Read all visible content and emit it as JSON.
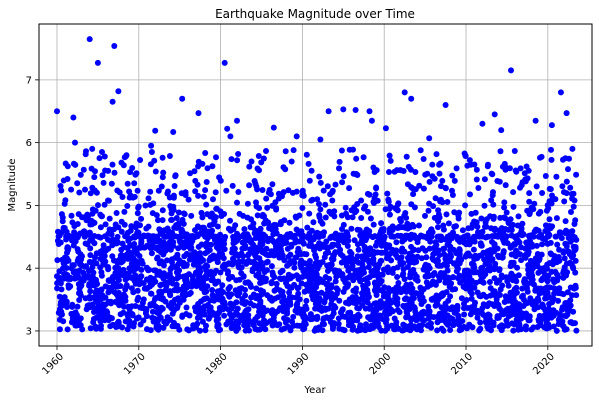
{
  "chart_data": {
    "type": "scatter",
    "title": "Earthquake Magnitude over Time",
    "xlabel": "Year",
    "ylabel": "Magnitude",
    "xlim": [
      1957.8,
      2025.4
    ],
    "ylim": [
      2.76,
      7.89
    ],
    "xticks": [
      1960,
      1970,
      1980,
      1990,
      2000,
      2010,
      2020
    ],
    "xtick_labels": [
      "1960",
      "1970",
      "1980",
      "1990",
      "2000",
      "2010",
      "2020"
    ],
    "yticks": [
      3,
      4,
      5,
      6,
      7
    ],
    "ytick_labels": [
      "3",
      "4",
      "5",
      "6",
      "7"
    ],
    "grid": true,
    "marker_color": "#0000ff",
    "series": [
      {
        "x_range": [
          1960,
          2023.5
        ],
        "y_min": 3.0,
        "dense_band_top": 4.5,
        "notable_points": [
          {
            "x": 1960.0,
            "y": 6.5
          },
          {
            "x": 1962.0,
            "y": 6.4
          },
          {
            "x": 1962.2,
            "y": 6.0
          },
          {
            "x": 1964.0,
            "y": 7.65
          },
          {
            "x": 1964.3,
            "y": 5.9
          },
          {
            "x": 1965.0,
            "y": 7.27
          },
          {
            "x": 1965.5,
            "y": 5.85
          },
          {
            "x": 1966.8,
            "y": 6.65
          },
          {
            "x": 1967.0,
            "y": 7.54
          },
          {
            "x": 1967.5,
            "y": 6.82
          },
          {
            "x": 1968.5,
            "y": 5.8
          },
          {
            "x": 1971.5,
            "y": 5.95
          },
          {
            "x": 1972.0,
            "y": 6.19
          },
          {
            "x": 1974.2,
            "y": 6.17
          },
          {
            "x": 1975.3,
            "y": 6.7
          },
          {
            "x": 1977.3,
            "y": 6.47
          },
          {
            "x": 1980.5,
            "y": 7.27
          },
          {
            "x": 1980.8,
            "y": 6.22
          },
          {
            "x": 1981.2,
            "y": 6.1
          },
          {
            "x": 1982.0,
            "y": 6.35
          },
          {
            "x": 1986.5,
            "y": 6.24
          },
          {
            "x": 1989.3,
            "y": 6.1
          },
          {
            "x": 1992.2,
            "y": 6.05
          },
          {
            "x": 1993.2,
            "y": 6.5
          },
          {
            "x": 1995.0,
            "y": 6.53
          },
          {
            "x": 1996.5,
            "y": 6.52
          },
          {
            "x": 1998.2,
            "y": 6.5
          },
          {
            "x": 1998.5,
            "y": 6.35
          },
          {
            "x": 2000.2,
            "y": 6.23
          },
          {
            "x": 2002.5,
            "y": 6.8
          },
          {
            "x": 2003.3,
            "y": 6.7
          },
          {
            "x": 2005.5,
            "y": 6.07
          },
          {
            "x": 2007.5,
            "y": 6.6
          },
          {
            "x": 2012.0,
            "y": 6.3
          },
          {
            "x": 2013.5,
            "y": 6.45
          },
          {
            "x": 2014.3,
            "y": 6.2
          },
          {
            "x": 2015.5,
            "y": 7.15
          },
          {
            "x": 2018.5,
            "y": 6.35
          },
          {
            "x": 2020.5,
            "y": 6.28
          },
          {
            "x": 2021.6,
            "y": 6.8
          },
          {
            "x": 2022.3,
            "y": 6.47
          },
          {
            "x": 2023.0,
            "y": 5.9
          }
        ]
      }
    ]
  }
}
